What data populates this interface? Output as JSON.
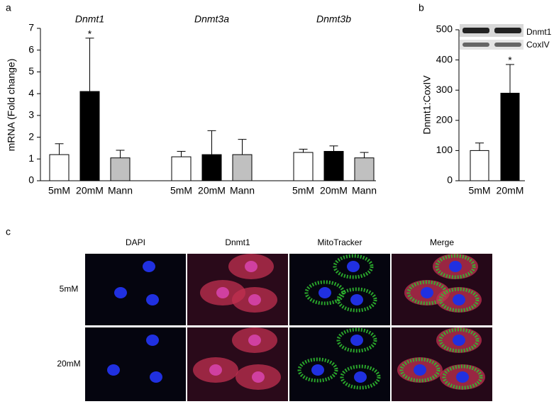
{
  "chart_data": [
    {
      "type": "bar",
      "panel_label": "a",
      "ylabel": "mRNA (Fold change)",
      "categories": [
        "Dnmt1",
        "Dnmt3a",
        "Dnmt3b"
      ],
      "series": [
        {
          "name": "5mM",
          "color": "#ffffff",
          "values": [
            1.2,
            1.1,
            1.3
          ],
          "errors": [
            0.5,
            0.25,
            0.15
          ]
        },
        {
          "name": "20mM",
          "color": "#000000",
          "values": [
            4.1,
            1.2,
            1.35
          ],
          "errors": [
            2.45,
            1.1,
            0.25
          ]
        },
        {
          "name": "Mann",
          "color": "#c0c0c0",
          "values": [
            1.05,
            1.2,
            1.05
          ],
          "errors": [
            0.35,
            0.7,
            0.25
          ]
        }
      ],
      "ylim": [
        0,
        7
      ],
      "yticks": [
        0,
        1,
        2,
        3,
        4,
        5,
        6,
        7
      ],
      "annotations": [
        "*"
      ]
    },
    {
      "type": "bar",
      "panel_label": "b",
      "ylabel": "Dnmt1:CoxIV",
      "categories": [
        "5mM",
        "20mM"
      ],
      "values": [
        100,
        290
      ],
      "errors": [
        25,
        95
      ],
      "colors": [
        "#ffffff",
        "#000000"
      ],
      "ylim": [
        0,
        500
      ],
      "yticks": [
        0,
        100,
        200,
        300,
        400,
        500
      ],
      "annotations": [
        "*"
      ],
      "blot_labels": [
        "Dnmt1",
        "CoxIV"
      ]
    }
  ],
  "panel_c": {
    "panel_label": "c",
    "columns": [
      "DAPI",
      "Dnmt1",
      "MitoTracker",
      "Merge"
    ],
    "rows": [
      "5mM",
      "20mM"
    ]
  }
}
